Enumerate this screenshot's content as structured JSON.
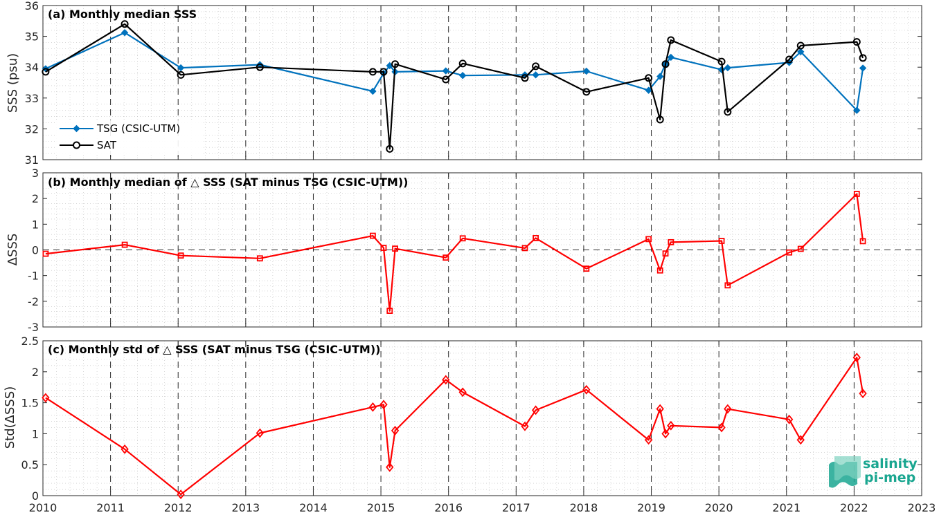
{
  "chart_data": [
    {
      "type": "line",
      "title": "(a) Monthly median SSS",
      "xlabel": "",
      "ylabel": "SSS (psu)",
      "xlim": [
        2010,
        2023
      ],
      "ylim": [
        31,
        36
      ],
      "yticks": [
        "31",
        "32",
        "33",
        "34",
        "35",
        "36"
      ],
      "grid": "minor dotted, dashed yearly verticals",
      "legend_position": "bottom-left",
      "series": [
        {
          "name": "TSG (CSIC-UTM)",
          "color": "#0072BD",
          "marker": "filled-diamond",
          "x": [
            2010.04,
            2011.21,
            2012.04,
            2013.21,
            2014.88,
            2015.04,
            2015.13,
            2015.21,
            2015.96,
            2016.21,
            2017.13,
            2017.29,
            2018.04,
            2018.96,
            2019.13,
            2019.21,
            2019.29,
            2020.04,
            2020.13,
            2021.04,
            2021.21,
            2022.04,
            2022.13
          ],
          "y": [
            33.95,
            35.12,
            33.98,
            34.08,
            33.22,
            33.8,
            34.05,
            33.85,
            33.88,
            33.73,
            33.75,
            33.75,
            33.87,
            33.25,
            33.7,
            34.1,
            34.32,
            33.92,
            33.98,
            34.15,
            34.5,
            32.6,
            33.97
          ]
        },
        {
          "name": "SAT",
          "color": "#000000",
          "marker": "open-circle",
          "x": [
            2010.04,
            2011.21,
            2012.04,
            2013.21,
            2014.88,
            2015.04,
            2015.13,
            2015.21,
            2015.96,
            2016.21,
            2017.13,
            2017.29,
            2018.04,
            2018.96,
            2019.13,
            2019.21,
            2019.29,
            2020.04,
            2020.13,
            2021.04,
            2021.21,
            2022.04,
            2022.13
          ],
          "y": [
            33.85,
            35.4,
            33.75,
            34.0,
            33.85,
            33.85,
            31.35,
            34.1,
            33.6,
            34.12,
            33.65,
            34.03,
            33.2,
            33.65,
            32.3,
            34.1,
            34.88,
            34.18,
            32.55,
            34.25,
            34.7,
            34.82,
            34.3
          ]
        }
      ]
    },
    {
      "type": "line",
      "title": "(b) Monthly median of △ SSS (SAT minus TSG (CSIC-UTM))",
      "xlabel": "",
      "ylabel": "ΔSSS",
      "xlim": [
        2010,
        2023
      ],
      "ylim": [
        -3,
        3
      ],
      "yticks": [
        "-3",
        "-2",
        "-1",
        "0",
        "1",
        "2",
        "3"
      ],
      "zero_line": "dashed",
      "series": [
        {
          "color": "#FF0000",
          "marker": "open-square",
          "x": [
            2010.04,
            2011.21,
            2012.04,
            2013.21,
            2014.88,
            2015.04,
            2015.13,
            2015.21,
            2015.96,
            2016.21,
            2017.13,
            2017.29,
            2018.04,
            2018.96,
            2019.13,
            2019.21,
            2019.29,
            2020.04,
            2020.13,
            2021.04,
            2021.21,
            2022.04,
            2022.13
          ],
          "y": [
            -0.15,
            0.2,
            -0.22,
            -0.33,
            0.55,
            0.08,
            -2.37,
            0.05,
            -0.3,
            0.45,
            0.07,
            0.46,
            -0.73,
            0.42,
            -0.8,
            -0.14,
            0.3,
            0.35,
            -1.38,
            -0.1,
            0.04,
            2.18,
            0.34
          ]
        }
      ]
    },
    {
      "type": "line",
      "title": "(c) Monthly std of △ SSS (SAT minus TSG (CSIC-UTM))",
      "xlabel": "",
      "ylabel": "Std(ΔSSS)",
      "xlim": [
        2010,
        2023
      ],
      "ylim": [
        0,
        2.5
      ],
      "yticks": [
        "0",
        "0.5",
        "1",
        "1.5",
        "2",
        "2.5"
      ],
      "xticks": [
        "2010",
        "2011",
        "2012",
        "2013",
        "2014",
        "2015",
        "2016",
        "2017",
        "2018",
        "2019",
        "2020",
        "2021",
        "2022",
        "2023"
      ],
      "series": [
        {
          "color": "#FF0000",
          "marker": "open-diamond",
          "x": [
            2010.04,
            2011.21,
            2012.04,
            2013.21,
            2014.88,
            2015.04,
            2015.13,
            2015.21,
            2015.96,
            2016.21,
            2017.13,
            2017.29,
            2018.04,
            2018.96,
            2019.13,
            2019.21,
            2019.29,
            2020.04,
            2020.13,
            2021.04,
            2021.21,
            2022.04,
            2022.13
          ],
          "y": [
            1.58,
            0.75,
            0.02,
            1.01,
            1.43,
            1.47,
            0.46,
            1.05,
            1.87,
            1.67,
            1.12,
            1.38,
            1.71,
            0.9,
            1.4,
            1.0,
            1.13,
            1.1,
            1.4,
            1.23,
            0.9,
            2.23,
            1.65
          ]
        }
      ]
    }
  ],
  "logo": {
    "line1": "salinity",
    "line2": "pi-mep",
    "color": "#1aa690"
  }
}
